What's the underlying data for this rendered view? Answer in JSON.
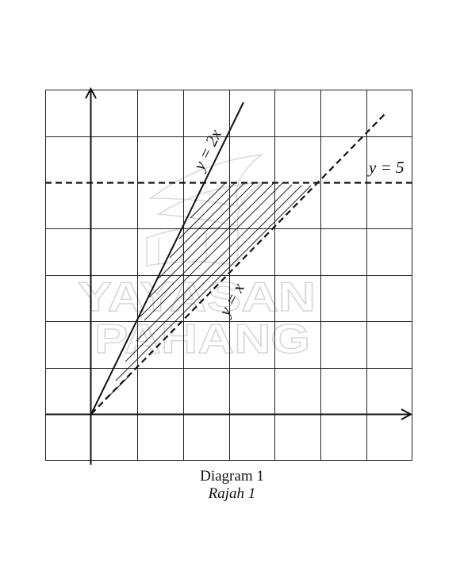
{
  "diagram": {
    "line_labels": {
      "y_equals_2x": "y = 2x",
      "y_equals_x": "y = x",
      "y_equals_5": "y = 5"
    },
    "watermark": {
      "line1": "YAYASAN",
      "line2": "PAHANG"
    },
    "colors": {
      "ink": "#111111",
      "grid": "#222222",
      "watermark": "#d6d6d6"
    }
  },
  "caption": {
    "title": "Diagram 1",
    "subtitle": "Rajah 1"
  }
}
